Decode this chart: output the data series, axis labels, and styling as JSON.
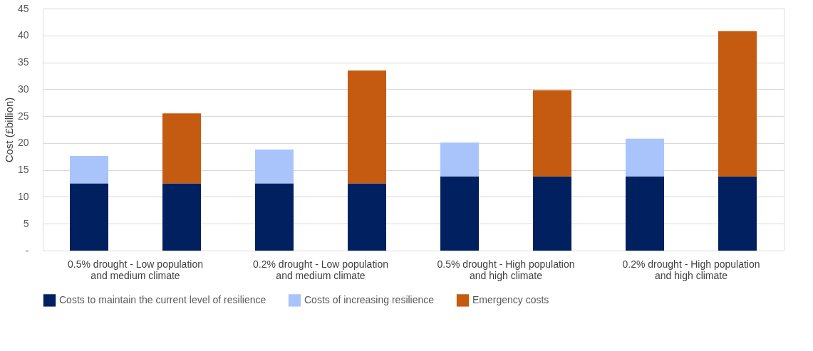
{
  "chart_data": {
    "type": "bar",
    "stacked": true,
    "ylabel": "Cost (£billion)",
    "categories": [
      "0.5% drought - Low population\nand medium climate",
      null,
      "0.2% drought - Low population\nand medium climate",
      null,
      "0.5% drought - High population\nand high climate",
      null,
      "0.2% drought - High population\nand high climate",
      null
    ],
    "series": [
      {
        "name": "Costs to maintain the current level of resilience",
        "color": "#002060",
        "values": [
          12.5,
          12.5,
          12.5,
          12.5,
          13.8,
          13.8,
          13.8,
          13.8
        ]
      },
      {
        "name": "Costs of increasing resilience",
        "color": "#a9c4fb",
        "values": [
          5.1,
          null,
          6.3,
          null,
          6.3,
          null,
          7.0,
          null
        ]
      },
      {
        "name": "Emergency costs",
        "color": "#c55a11",
        "values": [
          null,
          13.0,
          null,
          21.0,
          null,
          16.0,
          null,
          27.0
        ]
      }
    ],
    "ylim": [
      0,
      45
    ],
    "yticks": [
      {
        "value": 0,
        "label": "-"
      },
      5,
      10,
      15,
      20,
      25,
      30,
      35,
      40,
      45
    ],
    "grid": "y",
    "legend": "bottom"
  }
}
